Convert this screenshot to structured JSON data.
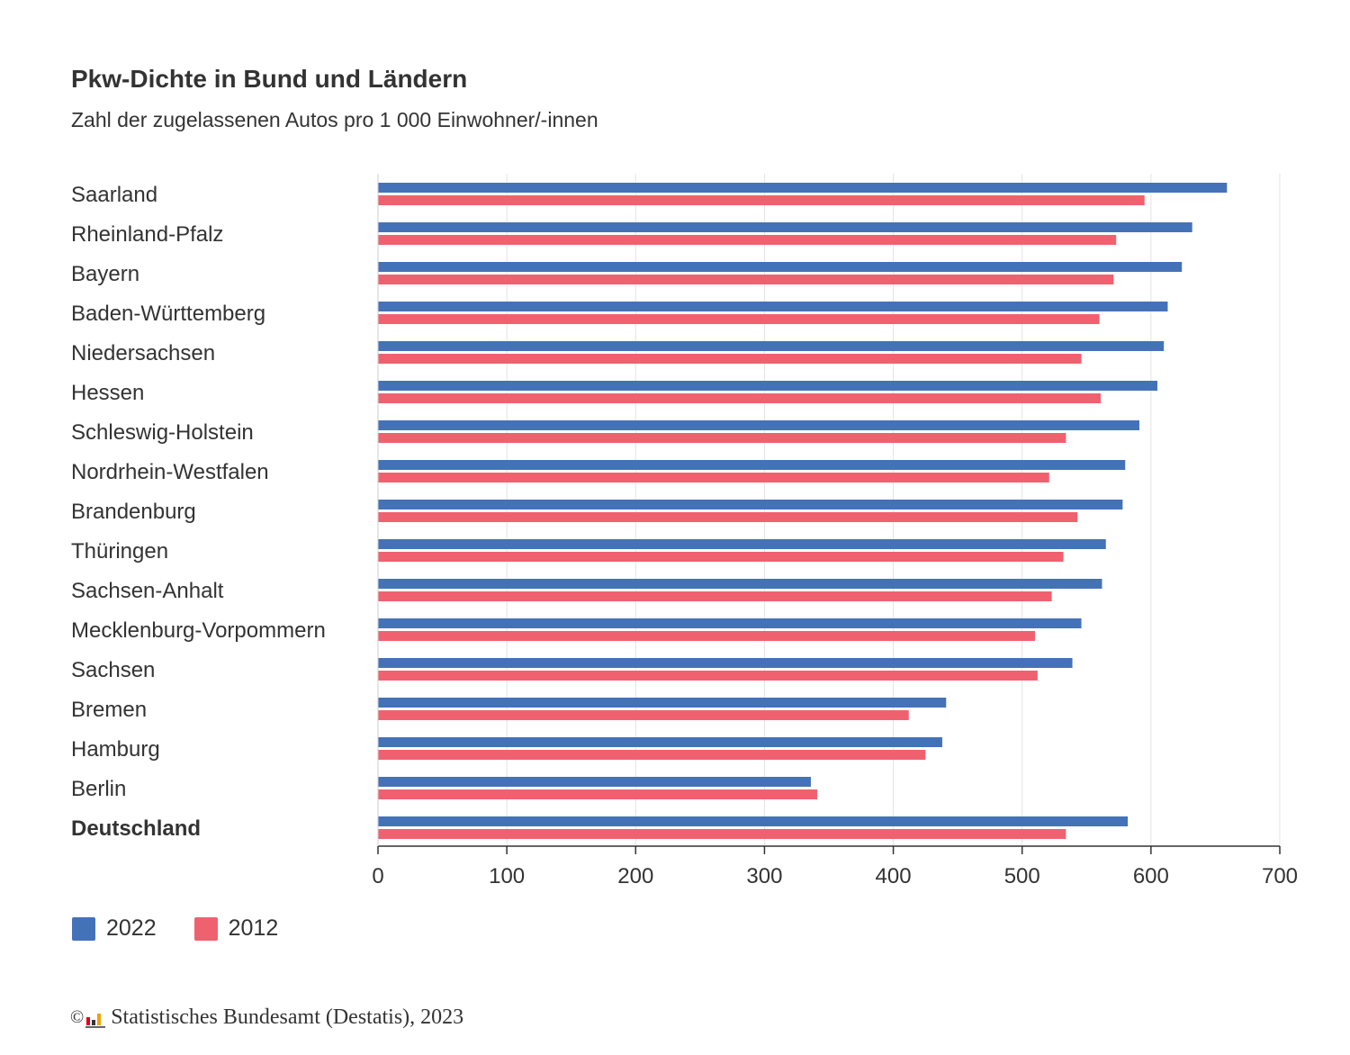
{
  "title": "Pkw-Dichte in Bund und Ländern",
  "subtitle": "Zahl der zugelassenen Autos pro 1 000 Einwohner/-innen",
  "source": "Statistisches Bundesamt (Destatis), 2023",
  "copyright_symbol": "©",
  "colors": {
    "series_2022": "#4472b8",
    "series_2012": "#f0616f",
    "grid": "#e3e3e3",
    "axis": "#333333",
    "text": "#333333"
  },
  "legend": [
    {
      "label": "2022",
      "color": "#4472b8"
    },
    {
      "label": "2012",
      "color": "#f0616f"
    }
  ],
  "chart_data": {
    "type": "bar",
    "orientation": "horizontal",
    "title": "Pkw-Dichte in Bund und Ländern",
    "subtitle": "Zahl der zugelassenen Autos pro 1 000 Einwohner/-innen",
    "xlabel": "",
    "ylabel": "",
    "xlim": [
      0,
      700
    ],
    "xticks": [
      0,
      100,
      200,
      300,
      400,
      500,
      600,
      700
    ],
    "grid": true,
    "legend_position": "bottom-left",
    "categories": [
      "Saarland",
      "Rheinland-Pfalz",
      "Bayern",
      "Baden-Württemberg",
      "Niedersachsen",
      "Hessen",
      "Schleswig-Holstein",
      "Nordrhein-Westfalen",
      "Brandenburg",
      "Thüringen",
      "Sachsen-Anhalt",
      "Mecklenburg-Vorpommern",
      "Sachsen",
      "Bremen",
      "Hamburg",
      "Berlin",
      "Deutschland"
    ],
    "bold_categories": [
      "Deutschland"
    ],
    "series": [
      {
        "name": "2022",
        "color": "#4472b8",
        "values": [
          659,
          632,
          624,
          613,
          610,
          605,
          591,
          580,
          578,
          565,
          562,
          546,
          539,
          441,
          438,
          336,
          582
        ]
      },
      {
        "name": "2012",
        "color": "#f0616f",
        "values": [
          595,
          573,
          571,
          560,
          546,
          561,
          534,
          521,
          543,
          532,
          523,
          510,
          512,
          412,
          425,
          341,
          534
        ]
      }
    ]
  }
}
